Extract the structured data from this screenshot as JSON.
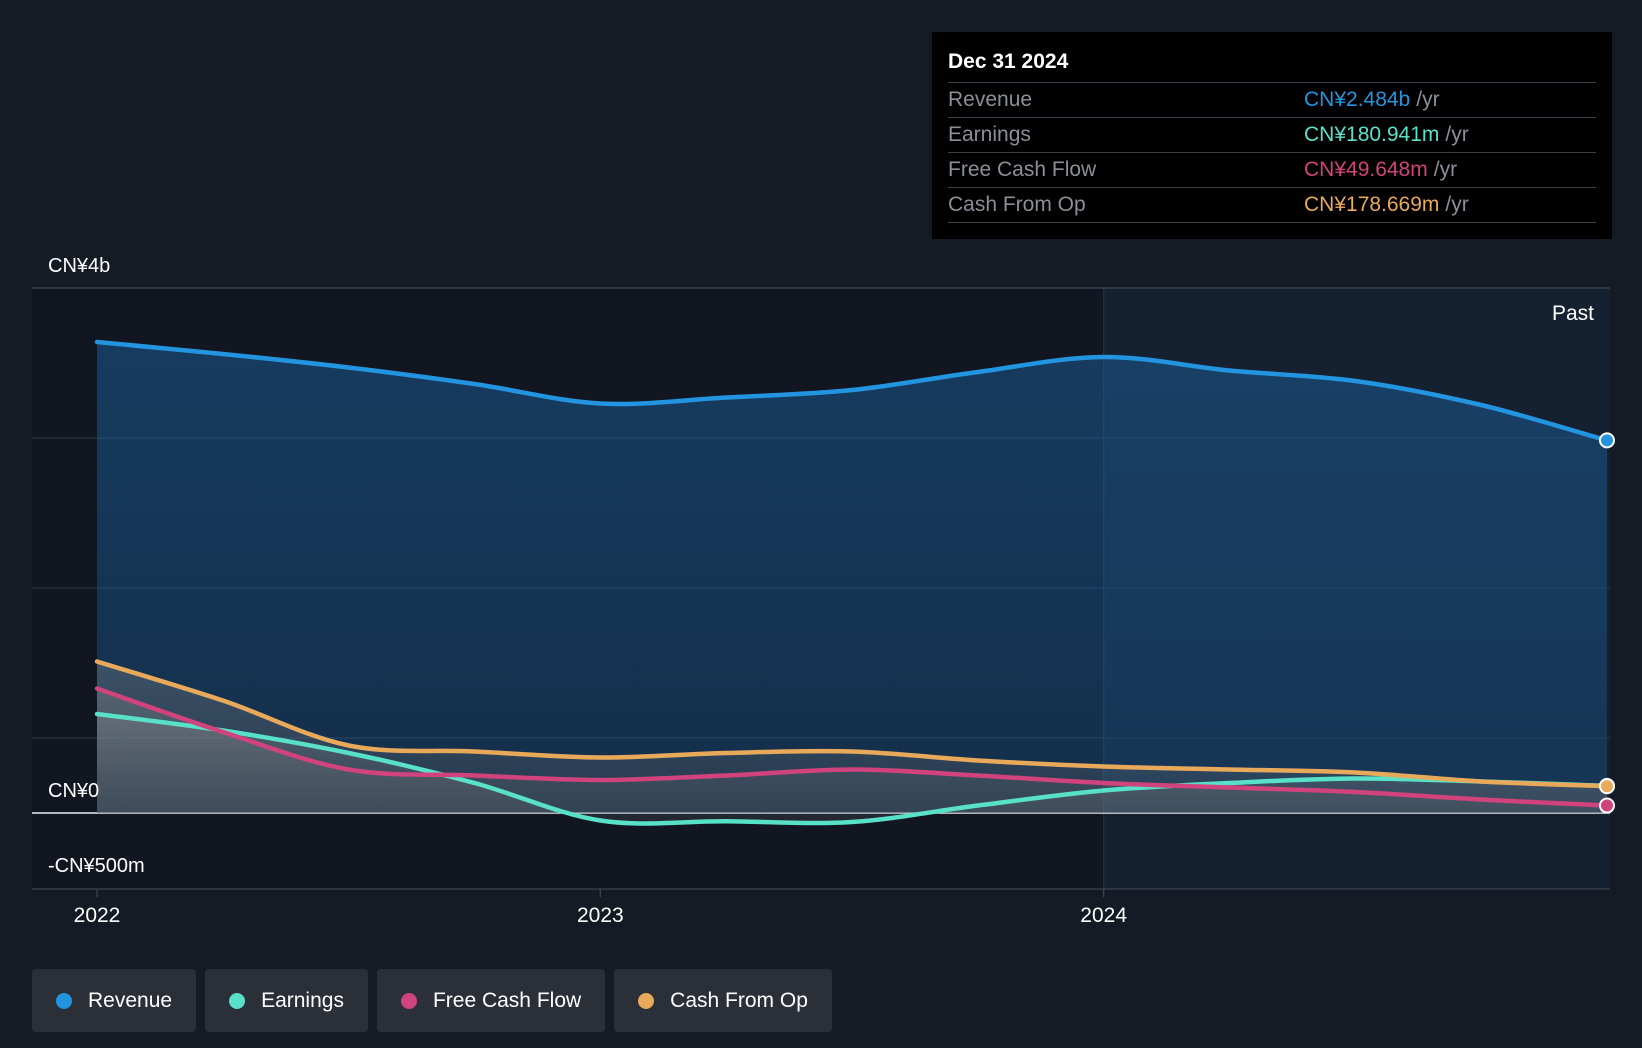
{
  "chart_data": {
    "type": "area",
    "y_axis_labels": [
      {
        "value": 4000,
        "text": "CN¥4b"
      },
      {
        "value": 0,
        "text": "CN¥0"
      },
      {
        "value": -500,
        "text": "-CN¥500m"
      }
    ],
    "ylim": [
      -500,
      3500
    ],
    "x_ticks": [
      {
        "value": 2022.0,
        "text": "2022"
      },
      {
        "value": 2023.0,
        "text": "2023"
      },
      {
        "value": 2024.0,
        "text": "2024"
      }
    ],
    "xlim": [
      2021.875,
      2025.0
    ],
    "past_label": "Past",
    "past_start": 2024.0,
    "series": [
      {
        "name": "Revenue",
        "color": "#2394df",
        "points": [
          [
            2022.0,
            3140
          ],
          [
            2022.25,
            3060
          ],
          [
            2022.5,
            2970
          ],
          [
            2022.75,
            2860
          ],
          [
            2023.0,
            2730
          ],
          [
            2023.25,
            2770
          ],
          [
            2023.5,
            2820
          ],
          [
            2023.75,
            2940
          ],
          [
            2024.0,
            3040
          ],
          [
            2024.25,
            2950
          ],
          [
            2024.5,
            2880
          ],
          [
            2024.75,
            2720
          ],
          [
            2025.0,
            2484
          ]
        ]
      },
      {
        "name": "Earnings",
        "color": "#58e0c8",
        "points": [
          [
            2022.0,
            660
          ],
          [
            2022.25,
            550
          ],
          [
            2022.5,
            400
          ],
          [
            2022.75,
            200
          ],
          [
            2023.0,
            -50
          ],
          [
            2023.25,
            -55
          ],
          [
            2023.5,
            -60
          ],
          [
            2023.75,
            50
          ],
          [
            2024.0,
            150
          ],
          [
            2024.25,
            200
          ],
          [
            2024.5,
            230
          ],
          [
            2024.75,
            210
          ],
          [
            2025.0,
            180.941
          ]
        ]
      },
      {
        "name": "Free Cash Flow",
        "color": "#d0437c",
        "points": [
          [
            2022.0,
            830
          ],
          [
            2022.25,
            540
          ],
          [
            2022.5,
            290
          ],
          [
            2022.75,
            250
          ],
          [
            2023.0,
            220
          ],
          [
            2023.25,
            250
          ],
          [
            2023.5,
            290
          ],
          [
            2023.75,
            250
          ],
          [
            2024.0,
            200
          ],
          [
            2024.25,
            170
          ],
          [
            2024.5,
            140
          ],
          [
            2024.75,
            90
          ],
          [
            2025.0,
            49.648
          ]
        ]
      },
      {
        "name": "Cash From Op",
        "color": "#e8a95b",
        "points": [
          [
            2022.0,
            1010
          ],
          [
            2022.25,
            750
          ],
          [
            2022.5,
            450
          ],
          [
            2022.75,
            410
          ],
          [
            2023.0,
            370
          ],
          [
            2023.25,
            400
          ],
          [
            2023.5,
            410
          ],
          [
            2023.75,
            350
          ],
          [
            2024.0,
            310
          ],
          [
            2024.25,
            290
          ],
          [
            2024.5,
            270
          ],
          [
            2024.75,
            210
          ],
          [
            2025.0,
            178.669
          ]
        ]
      }
    ]
  },
  "tooltip": {
    "date": "Dec 31 2024",
    "rows": [
      {
        "label": "Revenue",
        "value": "CN¥2.484b",
        "unit": "/yr",
        "color": "#2394df"
      },
      {
        "label": "Earnings",
        "value": "CN¥180.941m",
        "unit": "/yr",
        "color": "#58e0c8"
      },
      {
        "label": "Free Cash Flow",
        "value": "CN¥49.648m",
        "unit": "/yr",
        "color": "#d0437c"
      },
      {
        "label": "Cash From Op",
        "value": "CN¥178.669m",
        "unit": "/yr",
        "color": "#e8a95b"
      }
    ]
  },
  "legend": [
    {
      "label": "Revenue",
      "color": "#2394df"
    },
    {
      "label": "Earnings",
      "color": "#58e0c8"
    },
    {
      "label": "Free Cash Flow",
      "color": "#d0437c"
    },
    {
      "label": "Cash From Op",
      "color": "#e8a95b"
    }
  ]
}
